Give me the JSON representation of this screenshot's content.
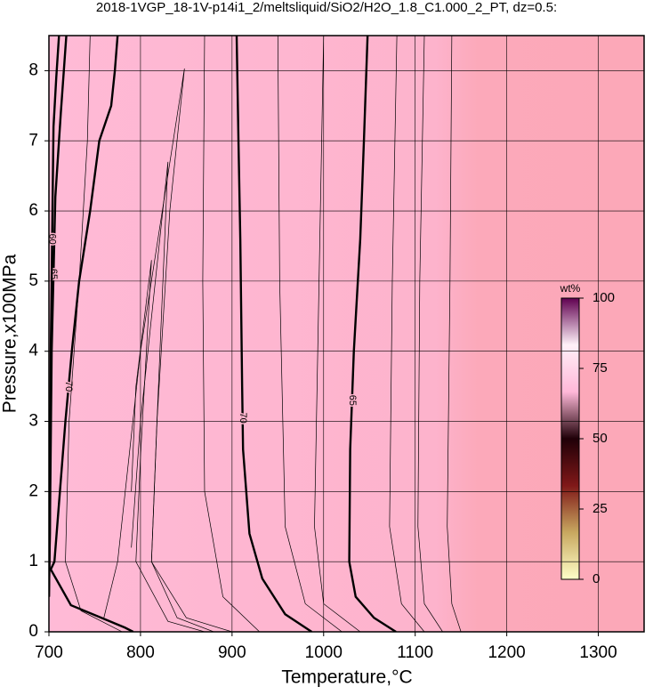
{
  "chart_data": {
    "type": "contour",
    "title": "2018-1VGP_18-1V-p14i1_2/meltsliquid/SiO2/H2O_1.8_C1.000_2_PT, dz=0.5:",
    "x_label": "Temperature,°C",
    "y_label": "Pressure,x100MPa",
    "xlim": [
      700,
      1350
    ],
    "xticks": [
      700,
      800,
      900,
      1000,
      1100,
      1200,
      1300
    ],
    "ylim": [
      0,
      8.5
    ],
    "yticks": [
      0,
      1,
      2,
      3,
      4,
      5,
      6,
      7,
      8
    ],
    "grid": true,
    "contours": [
      {
        "level": 70,
        "x": [
          775,
          772,
          768,
          755,
          745,
          733,
          725,
          718,
          712,
          706,
          702,
          724,
          783,
          792
        ],
        "y": [
          8.5,
          8,
          7.5,
          7,
          6,
          5,
          4,
          3,
          2,
          1,
          0.89,
          0.38,
          0.06,
          0
        ]
      },
      {
        "level": 70,
        "x": [
          905,
          907,
          909,
          911,
          912,
          919,
          933,
          958,
          987
        ],
        "y": [
          8.5,
          7,
          5.6,
          3.5,
          2.6,
          1.4,
          0.76,
          0.25,
          0
        ]
      },
      {
        "level": 65,
        "x": [
          1048,
          1044,
          1040,
          1033,
          1029,
          1028,
          1035,
          1055,
          1079
        ],
        "y": [
          8.5,
          7,
          5.6,
          4,
          2.6,
          1,
          0.5,
          0.2,
          0
        ]
      },
      {
        "level": 65,
        "x": [
          719,
          713,
          707,
          703,
          701,
          700
        ],
        "y": [
          8.5,
          7.4,
          6.2,
          4,
          1.4,
          0.5
        ]
      },
      {
        "level": 60,
        "x": [
          711,
          708,
          705,
          702,
          701,
          700
        ],
        "y": [
          8.5,
          7.9,
          7.2,
          4,
          1.4,
          0.5
        ]
      },
      {
        "x": [
          745,
          742,
          733,
          722,
          718,
          735,
          780
        ],
        "y": [
          8.5,
          7,
          5,
          3,
          1,
          0.3,
          0
        ]
      },
      {
        "x": [
          760,
          775,
          800,
          848,
          832,
          818,
          812,
          840,
          880
        ],
        "y": [
          0.2,
          1,
          4,
          8.03,
          6,
          3,
          1,
          0.2,
          0
        ]
      },
      {
        "x": [
          790,
          800,
          830,
          818,
          812,
          850,
          900
        ],
        "y": [
          1.2,
          3,
          6.7,
          3,
          1,
          0.2,
          0
        ]
      },
      {
        "x": [
          790,
          795,
          812,
          800,
          795,
          830,
          870
        ],
        "y": [
          2,
          3.5,
          5.3,
          2.5,
          1,
          0.15,
          0
        ]
      },
      {
        "x": [
          870,
          868,
          870,
          890,
          930
        ],
        "y": [
          8.5,
          5,
          2,
          0.5,
          0
        ]
      },
      {
        "x": [
          950,
          952,
          958,
          980,
          1020
        ],
        "y": [
          8.5,
          5,
          1.5,
          0.4,
          0
        ]
      },
      {
        "x": [
          1000,
          995,
          990,
          1000,
          1040
        ],
        "y": [
          8.5,
          5,
          1.5,
          0.4,
          0
        ]
      },
      {
        "x": [
          1080,
          1075,
          1072,
          1085,
          1110
        ],
        "y": [
          8.5,
          5,
          1.5,
          0.4,
          0
        ]
      },
      {
        "x": [
          1110,
          1105,
          1103,
          1110,
          1130
        ],
        "y": [
          8.5,
          5,
          1.5,
          0.4,
          0
        ]
      },
      {
        "x": [
          1140,
          1138,
          1135,
          1140,
          1150
        ],
        "y": [
          8.5,
          5,
          1.5,
          0.4,
          0
        ]
      }
    ],
    "colorbar": {
      "label": "wt%",
      "lim": [
        0,
        100
      ],
      "ticks": [
        0,
        25,
        50,
        75,
        100
      ],
      "colors": [
        "#ffffc8",
        "#c8a860",
        "#801818",
        "#200008",
        "#ffb8d8",
        "#fff0f8",
        "#600050"
      ]
    }
  }
}
